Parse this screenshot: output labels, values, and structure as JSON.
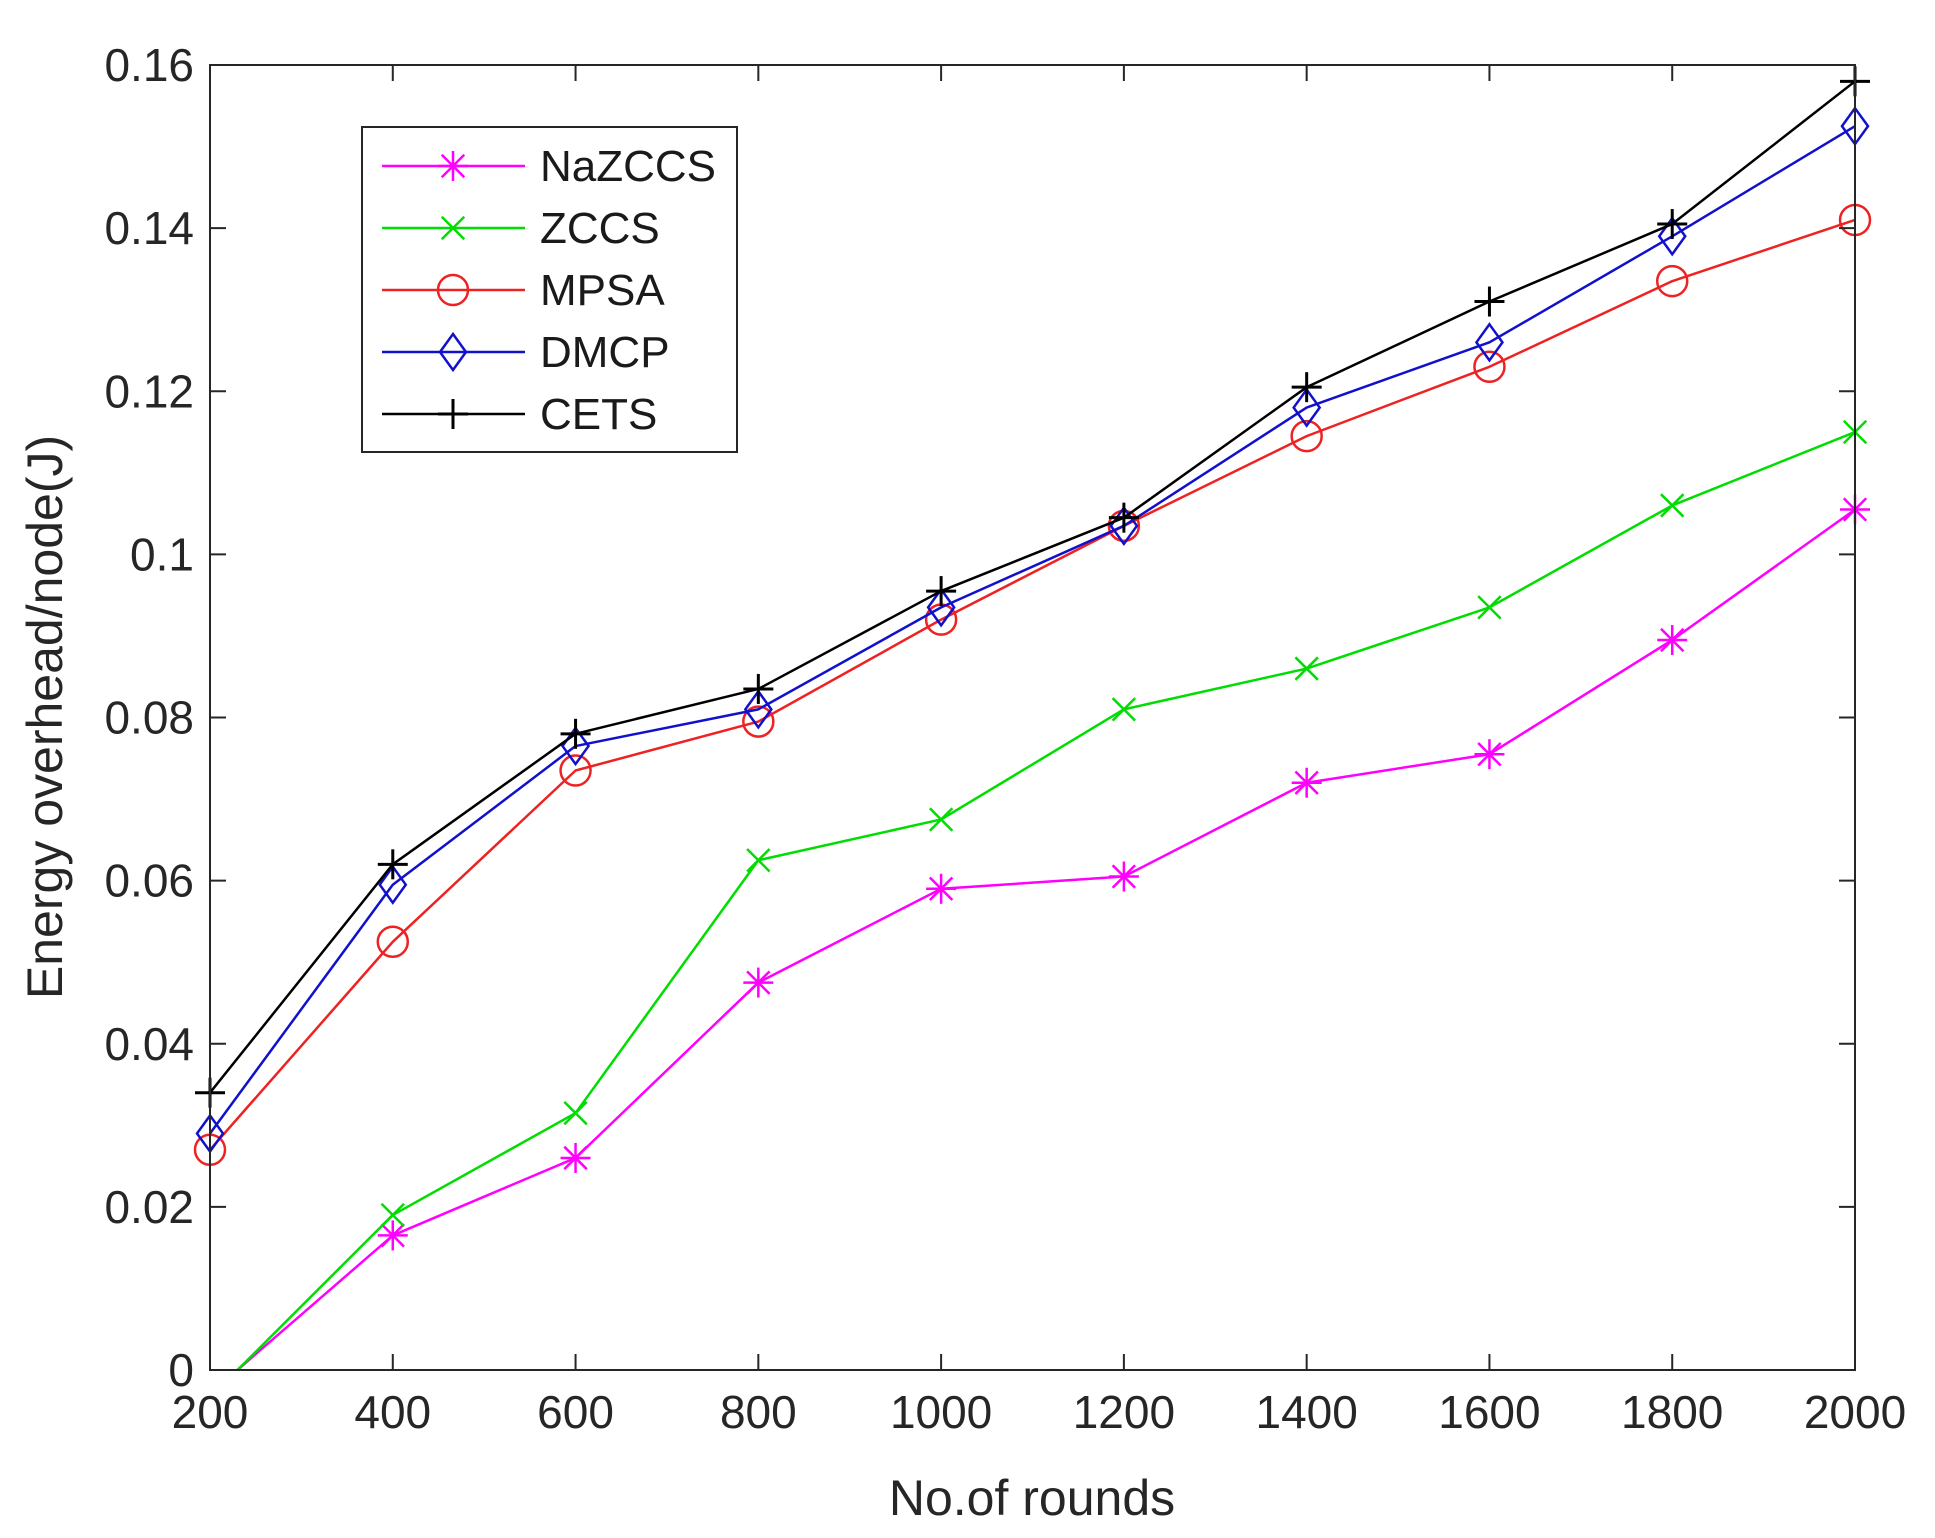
{
  "chart_data": {
    "type": "line",
    "title": "",
    "xlabel": "No.of rounds",
    "ylabel": "Energy overhead/node(J)",
    "x": [
      200,
      400,
      600,
      800,
      1000,
      1200,
      1400,
      1600,
      1800,
      2000
    ],
    "xlim": [
      200,
      2000
    ],
    "ylim": [
      0,
      0.16
    ],
    "xticks": [
      "200",
      "400",
      "600",
      "800",
      "1000",
      "1200",
      "1400",
      "1600",
      "1800",
      "2000"
    ],
    "yticks": [
      "0",
      "0.02",
      "0.04",
      "0.06",
      "0.08",
      "0.1",
      "0.12",
      "0.14",
      "0.16"
    ],
    "grid": false,
    "legend_position": "top-left",
    "series": [
      {
        "name": "NaZCCS",
        "color": "#ff00ff",
        "marker": "asterisk",
        "points": [
          [
            230,
            0.0
          ],
          [
            400,
            0.0165
          ],
          [
            600,
            0.026
          ],
          [
            800,
            0.0475
          ],
          [
            1000,
            0.059
          ],
          [
            1200,
            0.0605
          ],
          [
            1400,
            0.072
          ],
          [
            1600,
            0.0755
          ],
          [
            1800,
            0.0895
          ],
          [
            2000,
            0.1055
          ]
        ]
      },
      {
        "name": "ZCCS",
        "color": "#00dd00",
        "marker": "x",
        "points": [
          [
            230,
            0.0
          ],
          [
            400,
            0.019
          ],
          [
            600,
            0.0315
          ],
          [
            800,
            0.0625
          ],
          [
            1000,
            0.0675
          ],
          [
            1200,
            0.081
          ],
          [
            1400,
            0.086
          ],
          [
            1600,
            0.0935
          ],
          [
            1800,
            0.106
          ],
          [
            2000,
            0.115
          ]
        ]
      },
      {
        "name": "MPSA",
        "color": "#ee2222",
        "marker": "circle",
        "points": [
          [
            200,
            0.027
          ],
          [
            400,
            0.0525
          ],
          [
            600,
            0.0735
          ],
          [
            800,
            0.0795
          ],
          [
            1000,
            0.092
          ],
          [
            1200,
            0.1035
          ],
          [
            1400,
            0.1145
          ],
          [
            1600,
            0.123
          ],
          [
            1800,
            0.1335
          ],
          [
            2000,
            0.141
          ]
        ]
      },
      {
        "name": "DMCP",
        "color": "#1111cc",
        "marker": "diamond",
        "points": [
          [
            200,
            0.029
          ],
          [
            400,
            0.0595
          ],
          [
            600,
            0.0765
          ],
          [
            800,
            0.081
          ],
          [
            1000,
            0.0935
          ],
          [
            1200,
            0.1035
          ],
          [
            1400,
            0.118
          ],
          [
            1600,
            0.126
          ],
          [
            1800,
            0.139
          ],
          [
            2000,
            0.1525
          ]
        ]
      },
      {
        "name": "CETS",
        "color": "#000000",
        "marker": "plus",
        "points": [
          [
            200,
            0.034
          ],
          [
            400,
            0.062
          ],
          [
            600,
            0.078
          ],
          [
            800,
            0.0835
          ],
          [
            1000,
            0.0955
          ],
          [
            1200,
            0.1045
          ],
          [
            1400,
            0.1205
          ],
          [
            1600,
            0.131
          ],
          [
            1800,
            0.1405
          ],
          [
            2000,
            0.158
          ]
        ]
      }
    ]
  }
}
